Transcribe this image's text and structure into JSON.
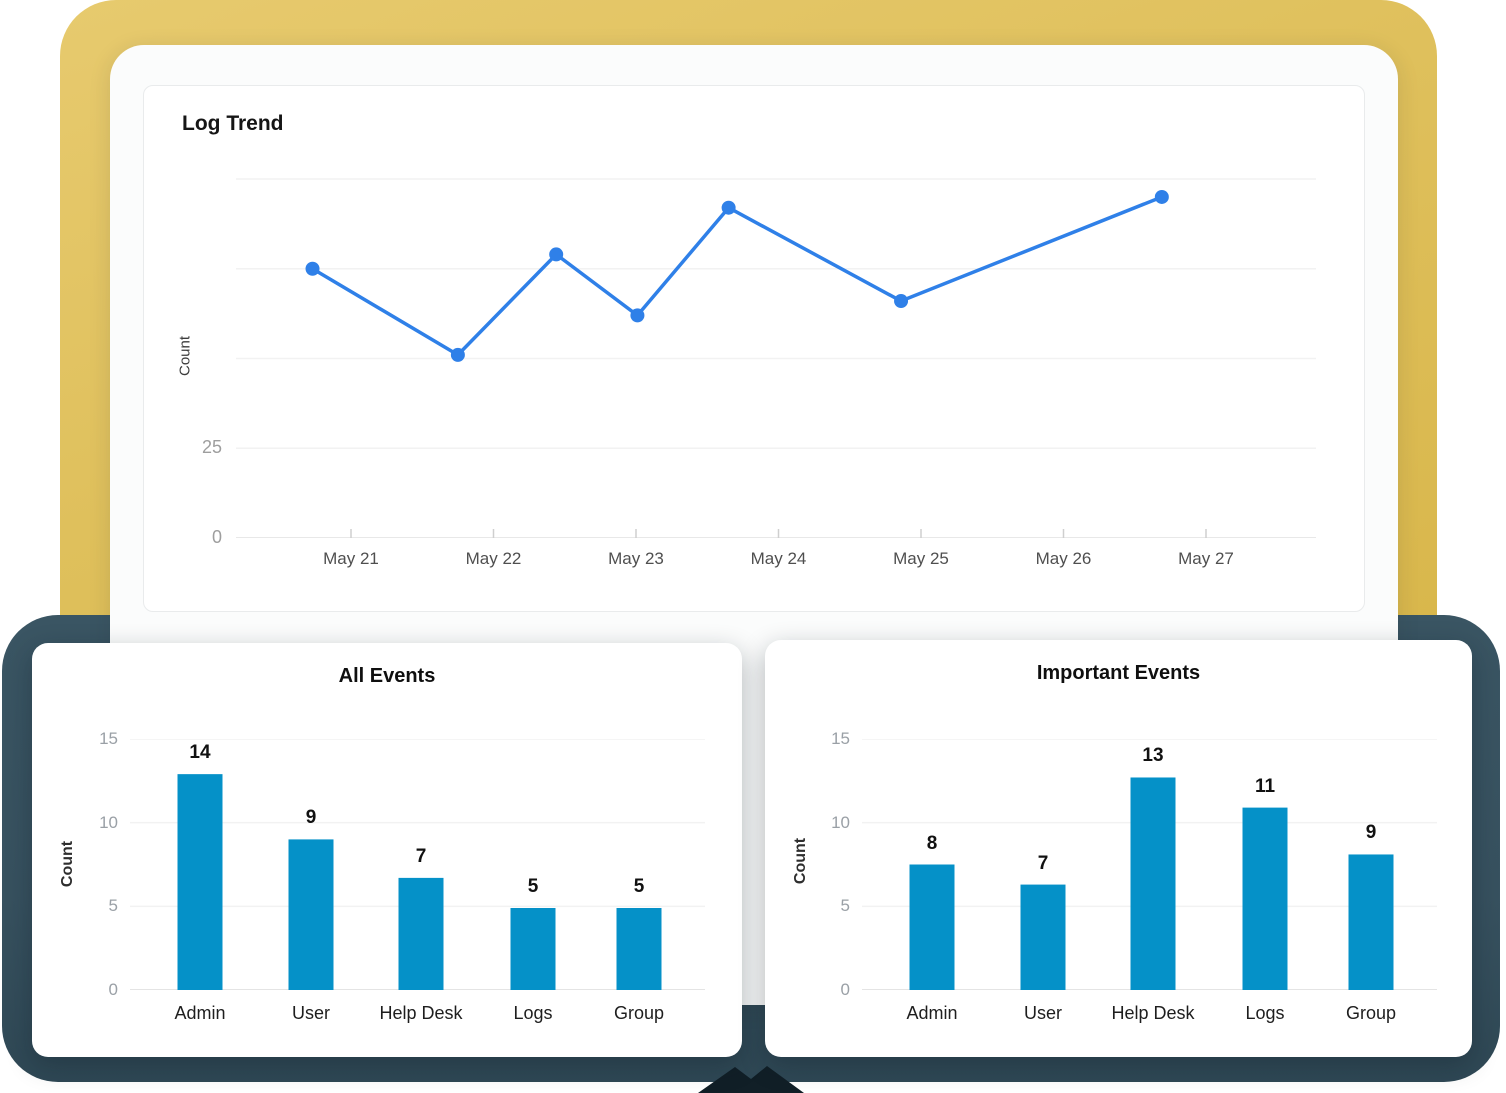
{
  "colors": {
    "frame_yellow": "#dfc05c",
    "frame_teal": "#37515f",
    "bar_blue": "#0591c8",
    "line_blue": "#2f80e8",
    "gridline": "#f2f2f2",
    "axis_line": "#e0e0e0",
    "tick_mark": "#cfcfcf",
    "notch_dark": "#111f27"
  },
  "chart_data": [
    {
      "type": "line",
      "title": "Log Trend",
      "ylabel": "Count",
      "xtick_labels": [
        "May 21",
        "May 22",
        "May 23",
        "May 24",
        "May 25",
        "May 26",
        "May 27"
      ],
      "x_days": [
        20.73,
        21.75,
        22.44,
        23.01,
        23.65,
        24.86,
        26.69
      ],
      "values": [
        75,
        51,
        79,
        62,
        92,
        66,
        95
      ],
      "ylim": [
        0,
        100
      ],
      "gridline_values": [
        100,
        75,
        50,
        25,
        0
      ],
      "yticks_visible": [
        {
          "label": "25",
          "value": 25
        },
        {
          "label": "0",
          "value": 0
        }
      ],
      "grid": "horizontal",
      "legend": "none"
    },
    {
      "type": "bar",
      "title": "All Events",
      "ylabel": "Count",
      "categories": [
        "Admin",
        "User",
        "Help Desk",
        "Logs",
        "Group"
      ],
      "values": [
        14,
        9,
        7,
        5,
        5
      ],
      "rendered_values": [
        12.9,
        9.0,
        6.7,
        4.9,
        4.9
      ],
      "ylim": [
        0,
        15
      ],
      "yticks": [
        15,
        10,
        5,
        0
      ],
      "grid": "horizontal",
      "legend": "none"
    },
    {
      "type": "bar",
      "title": "Important Events",
      "ylabel": "Count",
      "categories": [
        "Admin",
        "User",
        "Help Desk",
        "Logs",
        "Group"
      ],
      "values": [
        8,
        7,
        13,
        11,
        9
      ],
      "rendered_values": [
        7.5,
        6.3,
        12.7,
        10.9,
        8.1
      ],
      "ylim": [
        0,
        15
      ],
      "yticks": [
        15,
        10,
        5,
        0
      ],
      "grid": "horizontal",
      "legend": "none"
    }
  ]
}
